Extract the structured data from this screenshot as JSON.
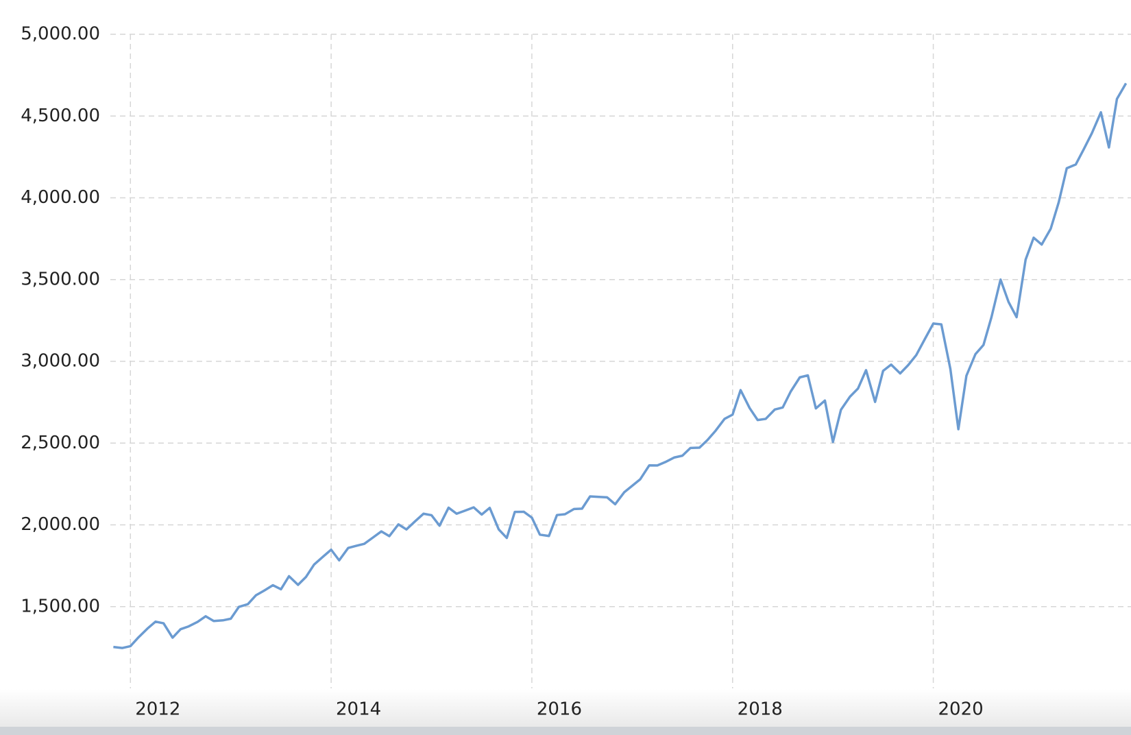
{
  "chart_data": {
    "type": "line",
    "color": "#6b9bd1",
    "grid": true,
    "x": [
      2011.83,
      2011.92,
      2012.0,
      2012.08,
      2012.17,
      2012.25,
      2012.33,
      2012.42,
      2012.5,
      2012.58,
      2012.67,
      2012.75,
      2012.83,
      2012.92,
      2013.0,
      2013.08,
      2013.17,
      2013.25,
      2013.33,
      2013.42,
      2013.5,
      2013.58,
      2013.67,
      2013.75,
      2013.83,
      2013.92,
      2014.0,
      2014.08,
      2014.17,
      2014.25,
      2014.33,
      2014.42,
      2014.5,
      2014.58,
      2014.67,
      2014.75,
      2014.83,
      2014.92,
      2015.0,
      2015.08,
      2015.17,
      2015.25,
      2015.33,
      2015.42,
      2015.5,
      2015.58,
      2015.67,
      2015.75,
      2015.83,
      2015.92,
      2016.0,
      2016.08,
      2016.17,
      2016.25,
      2016.33,
      2016.42,
      2016.5,
      2016.58,
      2016.67,
      2016.75,
      2016.83,
      2016.92,
      2017.0,
      2017.08,
      2017.17,
      2017.25,
      2017.33,
      2017.42,
      2017.5,
      2017.58,
      2017.67,
      2017.75,
      2017.83,
      2017.92,
      2018.0,
      2018.08,
      2018.17,
      2018.25,
      2018.33,
      2018.42,
      2018.5,
      2018.58,
      2018.67,
      2018.75,
      2018.83,
      2018.92,
      2019.0,
      2019.08,
      2019.17,
      2019.25,
      2019.33,
      2019.42,
      2019.5,
      2019.58,
      2019.67,
      2019.75,
      2019.83,
      2019.92,
      2020.0,
      2020.08,
      2020.17,
      2020.25,
      2020.33,
      2020.42,
      2020.5,
      2020.58,
      2020.67,
      2020.75,
      2020.83,
      2020.92,
      2021.0,
      2021.08,
      2021.17,
      2021.25,
      2021.33,
      2021.42,
      2021.5,
      2021.58,
      2021.67,
      2021.75,
      2021.83,
      2021.92
    ],
    "values": [
      1253,
      1247,
      1258,
      1312,
      1366,
      1408,
      1398,
      1310,
      1362,
      1379,
      1407,
      1441,
      1412,
      1416,
      1426,
      1498,
      1515,
      1569,
      1597,
      1631,
      1606,
      1686,
      1633,
      1682,
      1757,
      1806,
      1848,
      1783,
      1859,
      1872,
      1884,
      1924,
      1960,
      1931,
      2003,
      1972,
      2018,
      2068,
      2059,
      1995,
      2105,
      2068,
      2086,
      2107,
      2063,
      2104,
      1972,
      1920,
      2079,
      2080,
      2044,
      1940,
      1932,
      2060,
      2065,
      2097,
      2099,
      2174,
      2171,
      2168,
      2126,
      2199,
      2239,
      2279,
      2364,
      2363,
      2384,
      2412,
      2423,
      2470,
      2472,
      2519,
      2575,
      2648,
      2674,
      2824,
      2714,
      2641,
      2648,
      2705,
      2718,
      2816,
      2902,
      2914,
      2712,
      2760,
      2507,
      2704,
      2784,
      2834,
      2946,
      2752,
      2942,
      2980,
      2926,
      2977,
      3038,
      3141,
      3231,
      3226,
      2954,
      2585,
      2912,
      3044,
      3100,
      3271,
      3500,
      3363,
      3270,
      3622,
      3756,
      3714,
      3811,
      3973,
      4181,
      4204,
      4298,
      4395,
      4523,
      4308,
      4605,
      4700
    ],
    "xlim": [
      2011.8,
      2021.97
    ],
    "xticks": [
      2012,
      2014,
      2016,
      2018,
      2020
    ],
    "ylim": [
      1000,
      5000
    ],
    "yticks": [
      {
        "value": 1500,
        "label": "1,500.00"
      },
      {
        "value": 2000,
        "label": "2,000.00"
      },
      {
        "value": 2500,
        "label": "2,500.00"
      },
      {
        "value": 3000,
        "label": "3,000.00"
      },
      {
        "value": 3500,
        "label": "3,500.00"
      },
      {
        "value": 4000,
        "label": "4,000.00"
      },
      {
        "value": 4500,
        "label": "4,500.00"
      },
      {
        "value": 5000,
        "label": "5,000.00"
      }
    ]
  }
}
